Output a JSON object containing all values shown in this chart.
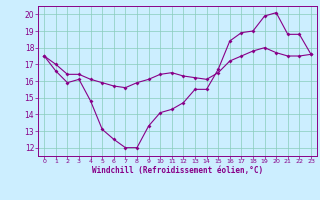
{
  "line1_x": [
    0,
    1,
    2,
    3,
    4,
    5,
    6,
    7,
    8,
    9,
    10,
    11,
    12,
    13,
    14,
    15,
    16,
    17,
    18,
    19,
    20,
    21,
    22,
    23
  ],
  "line1_y": [
    17.5,
    16.6,
    15.9,
    16.1,
    14.8,
    13.1,
    12.5,
    12.0,
    12.0,
    13.3,
    14.1,
    14.3,
    14.7,
    15.5,
    15.5,
    16.7,
    18.4,
    18.9,
    19.0,
    19.9,
    20.1,
    18.8,
    18.8,
    17.6
  ],
  "line2_x": [
    0,
    1,
    2,
    3,
    4,
    5,
    6,
    7,
    8,
    9,
    10,
    11,
    12,
    13,
    14,
    15,
    16,
    17,
    18,
    19,
    20,
    21,
    22,
    23
  ],
  "line2_y": [
    17.5,
    17.0,
    16.4,
    16.4,
    16.1,
    15.9,
    15.7,
    15.6,
    15.9,
    16.1,
    16.4,
    16.5,
    16.3,
    16.2,
    16.1,
    16.5,
    17.2,
    17.5,
    17.8,
    18.0,
    17.7,
    17.5,
    17.5,
    17.6
  ],
  "color": "#880088",
  "bg_color": "#cceeff",
  "grid_color": "#88ccbb",
  "xlabel": "Windchill (Refroidissement éolien,°C)",
  "xlim": [
    -0.5,
    23.5
  ],
  "ylim": [
    11.5,
    20.5
  ],
  "yticks": [
    12,
    13,
    14,
    15,
    16,
    17,
    18,
    19,
    20
  ],
  "xticks": [
    0,
    1,
    2,
    3,
    4,
    5,
    6,
    7,
    8,
    9,
    10,
    11,
    12,
    13,
    14,
    15,
    16,
    17,
    18,
    19,
    20,
    21,
    22,
    23
  ]
}
